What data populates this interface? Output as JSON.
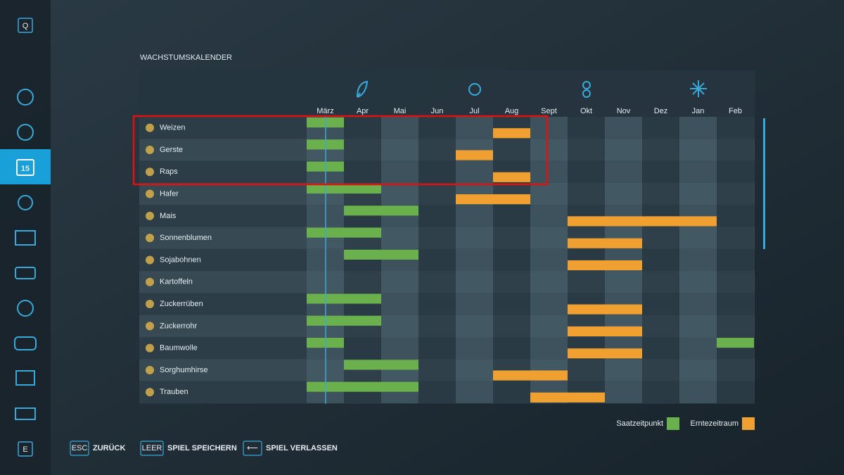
{
  "sidebar": {
    "top_key": "Q",
    "bottom_key": "E",
    "calendar_day": "15"
  },
  "title": "WACHSTUMSKALENDER",
  "months": [
    "März",
    "Apr",
    "Mai",
    "Jun",
    "Jul",
    "Aug",
    "Sept",
    "Okt",
    "Nov",
    "Dez",
    "Jan",
    "Feb"
  ],
  "crops": [
    {
      "name": "Weizen",
      "sowing": [
        "März"
      ],
      "harvest": [
        "Aug"
      ]
    },
    {
      "name": "Gerste",
      "sowing": [
        "März"
      ],
      "harvest": [
        "Jul"
      ]
    },
    {
      "name": "Raps",
      "sowing": [
        "März"
      ],
      "harvest": [
        "Aug"
      ]
    },
    {
      "name": "Hafer",
      "sowing": [
        "März",
        "Apr"
      ],
      "harvest": [
        "Jul",
        "Aug"
      ]
    },
    {
      "name": "Mais",
      "sowing": [
        "Apr",
        "Mai"
      ],
      "harvest": [
        "Okt",
        "Nov",
        "Dez",
        "Jan"
      ]
    },
    {
      "name": "Sonnenblumen",
      "sowing": [
        "März",
        "Apr"
      ],
      "harvest": [
        "Okt",
        "Nov"
      ]
    },
    {
      "name": "Sojabohnen",
      "sowing": [
        "Apr",
        "Mai"
      ],
      "harvest": [
        "Okt",
        "Nov"
      ]
    },
    {
      "name": "Kartoffeln",
      "sowing": [],
      "harvest": []
    },
    {
      "name": "Zuckerrüben",
      "sowing": [
        "März",
        "Apr"
      ],
      "harvest": [
        "Okt",
        "Nov"
      ]
    },
    {
      "name": "Zuckerrohr",
      "sowing": [
        "März",
        "Apr"
      ],
      "harvest": [
        "Okt",
        "Nov"
      ]
    },
    {
      "name": "Baumwolle",
      "sowing": [
        "März",
        "Feb"
      ],
      "harvest": [
        "Okt",
        "Nov"
      ]
    },
    {
      "name": "Sorghumhirse",
      "sowing": [
        "Apr",
        "Mai"
      ],
      "harvest": [
        "Aug",
        "Sept"
      ]
    },
    {
      "name": "Trauben",
      "sowing": [
        "März",
        "Apr",
        "Mai"
      ],
      "harvest": [
        "Sept",
        "Okt"
      ]
    }
  ],
  "legend": [
    {
      "label": "Saatzeitpunkt",
      "color": "#6ab04c"
    },
    {
      "label": "Erntezeitraum",
      "color": "#f0a030"
    }
  ],
  "footer": [
    {
      "key": "ESC",
      "label": "ZURÜCK"
    },
    {
      "key": "LEER",
      "label": "SPIEL SPEICHERN"
    },
    {
      "key": "⟵",
      "label": "SPIEL VERLASSEN"
    }
  ]
}
